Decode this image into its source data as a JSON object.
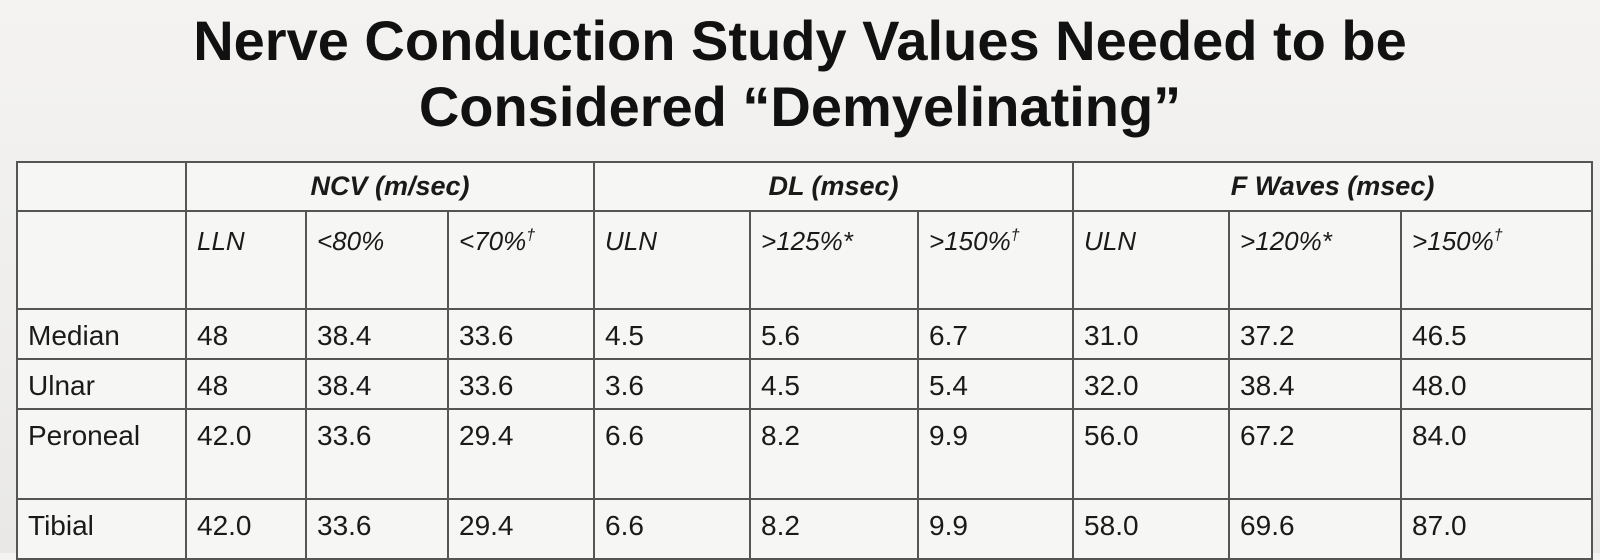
{
  "slide": {
    "title_line1": "Nerve Conduction Study Values Needed to be",
    "title_line2": "Considered “Demyelinating”"
  },
  "table": {
    "groups": [
      "NCV (m/sec)",
      "DL (msec)",
      "F Waves (msec)"
    ],
    "subheaders": [
      {
        "text": "LLN",
        "mark": ""
      },
      {
        "text": "<80%",
        "mark": ""
      },
      {
        "text": "<70%",
        "mark": "†"
      },
      {
        "text": "ULN",
        "mark": ""
      },
      {
        "text": ">125%*",
        "mark": ""
      },
      {
        "text": ">150%",
        "mark": "†"
      },
      {
        "text": "ULN",
        "mark": ""
      },
      {
        "text": ">120%*",
        "mark": ""
      },
      {
        "text": ">150%",
        "mark": "†"
      }
    ],
    "rows": [
      {
        "nerve": "Median",
        "values": [
          "48",
          "38.4",
          "33.6",
          "4.5",
          "5.6",
          "6.7",
          "31.0",
          "37.2",
          "46.5"
        ]
      },
      {
        "nerve": "Ulnar",
        "values": [
          "48",
          "38.4",
          "33.6",
          "3.6",
          "4.5",
          "5.4",
          "32.0",
          "38.4",
          "48.0"
        ]
      },
      {
        "nerve": "Peroneal",
        "values": [
          "42.0",
          "33.6",
          "29.4",
          "6.6",
          "8.2",
          "9.9",
          "56.0",
          "67.2",
          "84.0"
        ]
      },
      {
        "nerve": "Tibial",
        "values": [
          "42.0",
          "33.6",
          "29.4",
          "6.6",
          "8.2",
          "9.9",
          "58.0",
          "69.6",
          "87.0"
        ]
      }
    ]
  }
}
